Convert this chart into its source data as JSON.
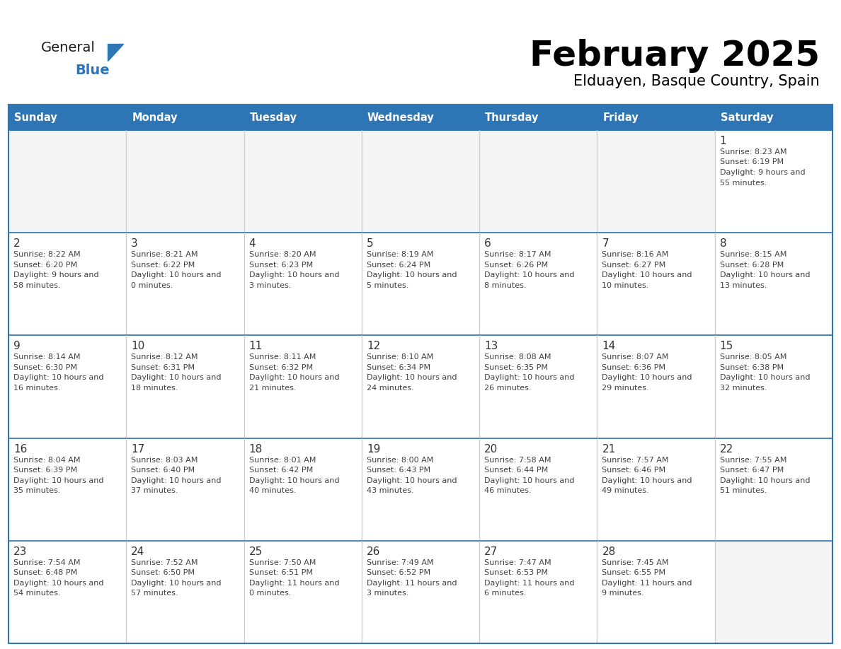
{
  "title": "February 2025",
  "subtitle": "Elduayen, Basque Country, Spain",
  "days_of_week": [
    "Sunday",
    "Monday",
    "Tuesday",
    "Wednesday",
    "Thursday",
    "Friday",
    "Saturday"
  ],
  "header_bg": "#2E75B6",
  "header_text": "#FFFFFF",
  "cell_bg": "#FFFFFF",
  "cell_bg_alt": "#F5F5F5",
  "border_color": "#2E75B6",
  "text_color": "#404040",
  "day_num_color": "#333333",
  "logo_general_color": "#1a1a1a",
  "logo_blue_color": "#2E75B6",
  "calendar": [
    [
      null,
      null,
      null,
      null,
      null,
      null,
      1
    ],
    [
      2,
      3,
      4,
      5,
      6,
      7,
      8
    ],
    [
      9,
      10,
      11,
      12,
      13,
      14,
      15
    ],
    [
      16,
      17,
      18,
      19,
      20,
      21,
      22
    ],
    [
      23,
      24,
      25,
      26,
      27,
      28,
      null
    ]
  ],
  "cell_data": {
    "1": {
      "sunrise": "8:23 AM",
      "sunset": "6:19 PM",
      "daylight": "9 hours and 55 minutes."
    },
    "2": {
      "sunrise": "8:22 AM",
      "sunset": "6:20 PM",
      "daylight": "9 hours and 58 minutes."
    },
    "3": {
      "sunrise": "8:21 AM",
      "sunset": "6:22 PM",
      "daylight": "10 hours and 0 minutes."
    },
    "4": {
      "sunrise": "8:20 AM",
      "sunset": "6:23 PM",
      "daylight": "10 hours and 3 minutes."
    },
    "5": {
      "sunrise": "8:19 AM",
      "sunset": "6:24 PM",
      "daylight": "10 hours and 5 minutes."
    },
    "6": {
      "sunrise": "8:17 AM",
      "sunset": "6:26 PM",
      "daylight": "10 hours and 8 minutes."
    },
    "7": {
      "sunrise": "8:16 AM",
      "sunset": "6:27 PM",
      "daylight": "10 hours and 10 minutes."
    },
    "8": {
      "sunrise": "8:15 AM",
      "sunset": "6:28 PM",
      "daylight": "10 hours and 13 minutes."
    },
    "9": {
      "sunrise": "8:14 AM",
      "sunset": "6:30 PM",
      "daylight": "10 hours and 16 minutes."
    },
    "10": {
      "sunrise": "8:12 AM",
      "sunset": "6:31 PM",
      "daylight": "10 hours and 18 minutes."
    },
    "11": {
      "sunrise": "8:11 AM",
      "sunset": "6:32 PM",
      "daylight": "10 hours and 21 minutes."
    },
    "12": {
      "sunrise": "8:10 AM",
      "sunset": "6:34 PM",
      "daylight": "10 hours and 24 minutes."
    },
    "13": {
      "sunrise": "8:08 AM",
      "sunset": "6:35 PM",
      "daylight": "10 hours and 26 minutes."
    },
    "14": {
      "sunrise": "8:07 AM",
      "sunset": "6:36 PM",
      "daylight": "10 hours and 29 minutes."
    },
    "15": {
      "sunrise": "8:05 AM",
      "sunset": "6:38 PM",
      "daylight": "10 hours and 32 minutes."
    },
    "16": {
      "sunrise": "8:04 AM",
      "sunset": "6:39 PM",
      "daylight": "10 hours and 35 minutes."
    },
    "17": {
      "sunrise": "8:03 AM",
      "sunset": "6:40 PM",
      "daylight": "10 hours and 37 minutes."
    },
    "18": {
      "sunrise": "8:01 AM",
      "sunset": "6:42 PM",
      "daylight": "10 hours and 40 minutes."
    },
    "19": {
      "sunrise": "8:00 AM",
      "sunset": "6:43 PM",
      "daylight": "10 hours and 43 minutes."
    },
    "20": {
      "sunrise": "7:58 AM",
      "sunset": "6:44 PM",
      "daylight": "10 hours and 46 minutes."
    },
    "21": {
      "sunrise": "7:57 AM",
      "sunset": "6:46 PM",
      "daylight": "10 hours and 49 minutes."
    },
    "22": {
      "sunrise": "7:55 AM",
      "sunset": "6:47 PM",
      "daylight": "10 hours and 51 minutes."
    },
    "23": {
      "sunrise": "7:54 AM",
      "sunset": "6:48 PM",
      "daylight": "10 hours and 54 minutes."
    },
    "24": {
      "sunrise": "7:52 AM",
      "sunset": "6:50 PM",
      "daylight": "10 hours and 57 minutes."
    },
    "25": {
      "sunrise": "7:50 AM",
      "sunset": "6:51 PM",
      "daylight": "11 hours and 0 minutes."
    },
    "26": {
      "sunrise": "7:49 AM",
      "sunset": "6:52 PM",
      "daylight": "11 hours and 3 minutes."
    },
    "27": {
      "sunrise": "7:47 AM",
      "sunset": "6:53 PM",
      "daylight": "11 hours and 6 minutes."
    },
    "28": {
      "sunrise": "7:45 AM",
      "sunset": "6:55 PM",
      "daylight": "11 hours and 9 minutes."
    }
  }
}
